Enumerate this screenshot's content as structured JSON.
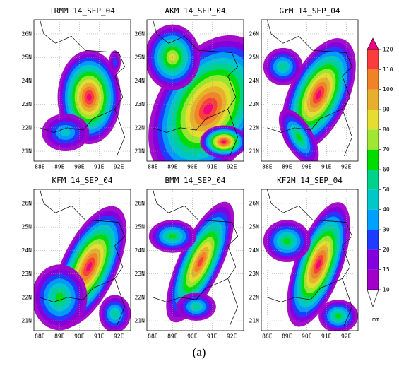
{
  "panels": [
    {
      "title": "TRMM 14_SEP_04"
    },
    {
      "title": "AKM 14_SEP_04"
    },
    {
      "title": "GrM 14_SEP_04"
    },
    {
      "title": "KFM 14_SEP_04"
    },
    {
      "title": "BMM 14_SEP_04"
    },
    {
      "title": "KF2M 14_SEP_04"
    }
  ],
  "map": {
    "xlim": [
      87.7,
      92.6
    ],
    "ylim": [
      20.58,
      26.6
    ],
    "xticks": [
      {
        "value": 88,
        "label": "88E"
      },
      {
        "value": 89,
        "label": "89E"
      },
      {
        "value": 90,
        "label": "90E"
      },
      {
        "value": 91,
        "label": "91E"
      },
      {
        "value": 92,
        "label": "92E"
      }
    ],
    "yticks": [
      {
        "value": 21,
        "label": "21N"
      },
      {
        "value": 22,
        "label": "22N"
      },
      {
        "value": 23,
        "label": "23N"
      },
      {
        "value": 24,
        "label": "24N"
      },
      {
        "value": 25,
        "label": "25N"
      },
      {
        "value": 26,
        "label": "26N"
      }
    ]
  },
  "colorbar": {
    "levels": [
      10,
      15,
      20,
      30,
      40,
      50,
      60,
      70,
      80,
      90,
      100,
      110,
      120
    ],
    "colors": [
      "#a000c8",
      "#8200dc",
      "#1e3cff",
      "#00a0ff",
      "#00c8c8",
      "#00d28c",
      "#00dc00",
      "#a0e632",
      "#e6dc32",
      "#e6af2d",
      "#f08228",
      "#fa3c3c",
      "#f00082"
    ],
    "below_color": "#ffffff",
    "unit": "mm"
  },
  "caption": "(a)"
}
